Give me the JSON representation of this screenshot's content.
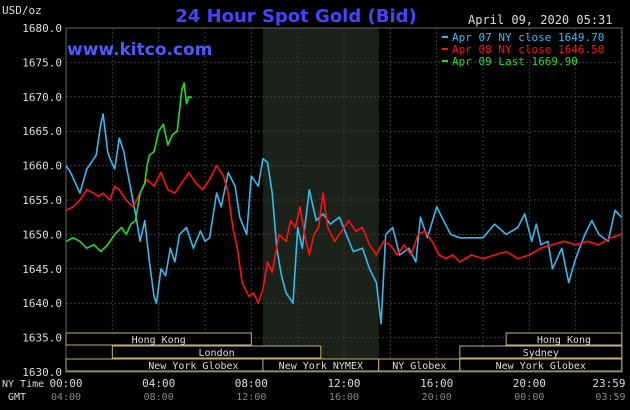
{
  "title": "24 Hour Spot Gold (Bid)",
  "unit_label": "USD/oz",
  "timestamp": "April 09, 2020 05:31",
  "site": "www.kitco.com",
  "axis_labels": {
    "ny_time": "NY Time",
    "gmt": "GMT"
  },
  "colors": {
    "background": "#000000",
    "night_shade": "#1a221a",
    "grid": "#3a3a3a",
    "title": "#4444ff",
    "site": "#4a5cff",
    "apr07": "#33bbee",
    "apr08": "#ff1111",
    "apr09": "#22dd22",
    "session_box": "#c8b070",
    "text": "#dddddd"
  },
  "sessions": [
    {
      "label": "Hong Kong",
      "row": 0,
      "start": 0.0,
      "end": 8.0
    },
    {
      "label": "London",
      "row": 1,
      "start": 2.0,
      "end": 11.0
    },
    {
      "label": "New York Globex",
      "row": 2,
      "start": 0.0,
      "end": 11.0
    },
    {
      "label": "New York NYMEX",
      "row": 2,
      "start": 8.5,
      "end": 13.5
    },
    {
      "label": "NY Globex",
      "row": 2,
      "start": 13.5,
      "end": 17.0
    },
    {
      "label": "Hong Kong",
      "row": 0,
      "start": 19.0,
      "end": 23.99
    },
    {
      "label": "Sydney",
      "row": 1,
      "start": 17.0,
      "end": 23.99
    },
    {
      "label": "New York Globex",
      "row": 2,
      "start": 17.0,
      "end": 23.99
    }
  ],
  "chart_data": {
    "type": "line",
    "title": "24 Hour Spot Gold (Bid)",
    "ylabel": "USD/oz",
    "xlabel": "",
    "ylim": [
      1630,
      1680
    ],
    "xlim": [
      0,
      24
    ],
    "y_ticks": [
      "1680.0",
      "1675.0",
      "1670.0",
      "1665.0",
      "1660.0",
      "1655.0",
      "1650.0",
      "1645.0",
      "1640.0",
      "1635.0",
      "1630.0"
    ],
    "x_ticks_ny": [
      "00:00",
      "04:00",
      "08:00",
      "12:00",
      "16:00",
      "20:00",
      "23:59"
    ],
    "x_ticks_gmt": [
      "04:00",
      "08:00",
      "12:00",
      "16:00",
      "20:00",
      "00:00",
      "03:59"
    ],
    "x_tick_positions": [
      0,
      4,
      8,
      12,
      16,
      20,
      23.98
    ],
    "night_shade_range": [
      8.5,
      13.5
    ],
    "grid": true,
    "legend_position": "top-right",
    "series": [
      {
        "name": "Apr 07 NY close 1649.70",
        "color": "#33bbee",
        "x": [
          0,
          0.2,
          0.4,
          0.6,
          0.9,
          1.1,
          1.3,
          1.5,
          1.6,
          1.8,
          1.9,
          2.1,
          2.3,
          2.5,
          2.6,
          2.8,
          3.0,
          3.2,
          3.4,
          3.6,
          3.8,
          3.9,
          4.1,
          4.3,
          4.5,
          4.7,
          4.9,
          5.2,
          5.5,
          5.8,
          6.0,
          6.2,
          6.5,
          6.7,
          7.0,
          7.3,
          7.5,
          7.8,
          8.0,
          8.3,
          8.5,
          8.7,
          8.9,
          9.1,
          9.3,
          9.5,
          9.8,
          10.0,
          10.2,
          10.5,
          10.8,
          11.1,
          11.4,
          11.8,
          12.1,
          12.4,
          12.8,
          13.1,
          13.4,
          13.6,
          13.8,
          14.1,
          14.4,
          14.8,
          15.1,
          15.3,
          15.6,
          16.0,
          16.3,
          16.6,
          17.0,
          17.5,
          18.0,
          18.5,
          19.0,
          19.5,
          19.8,
          20.1,
          20.3,
          20.5,
          20.8,
          21.0,
          21.4,
          21.7,
          22.0,
          22.4,
          22.7,
          23.0,
          23.4,
          23.7,
          23.98
        ],
        "y": [
          1660.0,
          1659.0,
          1657.5,
          1656.0,
          1659.5,
          1660.5,
          1661.5,
          1666.0,
          1667.5,
          1662.0,
          1661.0,
          1659.5,
          1664.0,
          1662.0,
          1660.0,
          1656.5,
          1653.0,
          1649.0,
          1652.0,
          1646.0,
          1641.0,
          1640.0,
          1645.0,
          1644.0,
          1648.0,
          1646.0,
          1650.0,
          1651.0,
          1648.0,
          1650.5,
          1649.0,
          1649.5,
          1656.0,
          1654.0,
          1659.0,
          1657.0,
          1652.5,
          1650.0,
          1658.5,
          1657.0,
          1661.0,
          1660.5,
          1656.0,
          1648.0,
          1644.0,
          1641.5,
          1640.0,
          1651.0,
          1648.0,
          1656.5,
          1652.0,
          1653.0,
          1651.5,
          1652.5,
          1650.0,
          1647.5,
          1648.0,
          1645.0,
          1643.0,
          1637.0,
          1650.0,
          1651.0,
          1647.0,
          1648.0,
          1646.0,
          1652.5,
          1649.5,
          1654.0,
          1652.0,
          1650.0,
          1649.5,
          1649.5,
          1649.5,
          1651.5,
          1650.0,
          1651.0,
          1653.0,
          1649.0,
          1651.5,
          1648.5,
          1649.0,
          1645.0,
          1648.0,
          1643.0,
          1646.5,
          1650.0,
          1652.0,
          1650.0,
          1649.0,
          1653.5,
          1652.5
        ]
      },
      {
        "name": "Apr 08 NY close 1646.50",
        "color": "#ff1111",
        "x": [
          0,
          0.3,
          0.6,
          0.9,
          1.2,
          1.4,
          1.6,
          1.9,
          2.1,
          2.3,
          2.6,
          2.9,
          3.2,
          3.5,
          3.8,
          4.1,
          4.4,
          4.7,
          5.0,
          5.3,
          5.6,
          5.9,
          6.2,
          6.5,
          6.8,
          7.0,
          7.2,
          7.4,
          7.6,
          7.9,
          8.1,
          8.3,
          8.5,
          8.7,
          8.9,
          9.2,
          9.5,
          9.7,
          9.9,
          10.1,
          10.3,
          10.5,
          10.7,
          10.9,
          11.1,
          11.3,
          11.6,
          11.9,
          12.2,
          12.5,
          12.8,
          13.1,
          13.4,
          13.7,
          14.0,
          14.3,
          14.6,
          14.9,
          15.2,
          15.5,
          15.8,
          16.1,
          16.4,
          16.7,
          17.0,
          17.5,
          18.0,
          18.5,
          19.0,
          19.5,
          20.0,
          20.5,
          21.0,
          21.5,
          22.0,
          22.5,
          23.0,
          23.5,
          23.98
        ],
        "y": [
          1653.5,
          1654.0,
          1655.0,
          1656.5,
          1656.0,
          1655.5,
          1656.0,
          1655.0,
          1657.0,
          1656.5,
          1655.0,
          1654.0,
          1656.0,
          1658.0,
          1657.0,
          1659.0,
          1656.5,
          1656.0,
          1657.5,
          1659.0,
          1657.5,
          1656.5,
          1658.0,
          1660.0,
          1658.5,
          1656.0,
          1651.0,
          1648.0,
          1643.0,
          1641.0,
          1641.5,
          1640.0,
          1642.0,
          1646.0,
          1644.5,
          1650.0,
          1649.0,
          1652.0,
          1651.0,
          1654.0,
          1650.0,
          1647.0,
          1650.0,
          1651.0,
          1656.0,
          1651.0,
          1649.0,
          1650.5,
          1652.0,
          1650.5,
          1651.0,
          1648.5,
          1647.0,
          1649.0,
          1648.5,
          1647.0,
          1648.5,
          1647.0,
          1650.0,
          1650.5,
          1649.0,
          1647.0,
          1646.5,
          1647.0,
          1646.0,
          1647.0,
          1646.5,
          1647.0,
          1647.5,
          1646.5,
          1647.0,
          1648.0,
          1648.5,
          1649.0,
          1648.5,
          1649.0,
          1648.5,
          1649.5,
          1650.0
        ]
      },
      {
        "name": "Apr 09 Last 1669.90",
        "color": "#22dd22",
        "x": [
          0,
          0.3,
          0.6,
          0.9,
          1.2,
          1.5,
          1.8,
          2.1,
          2.4,
          2.6,
          2.8,
          3.0,
          3.2,
          3.4,
          3.5,
          3.6,
          3.8,
          4.0,
          4.2,
          4.4,
          4.6,
          4.8,
          5.0,
          5.1,
          5.2,
          5.3,
          5.45
        ],
        "y": [
          1649.0,
          1649.5,
          1649.0,
          1648.0,
          1648.5,
          1647.5,
          1648.5,
          1650.0,
          1651.0,
          1650.0,
          1651.5,
          1652.0,
          1656.0,
          1657.5,
          1660.0,
          1661.5,
          1662.0,
          1665.0,
          1666.0,
          1663.0,
          1664.5,
          1665.0,
          1671.0,
          1672.0,
          1669.0,
          1670.0,
          1669.9
        ]
      }
    ]
  }
}
